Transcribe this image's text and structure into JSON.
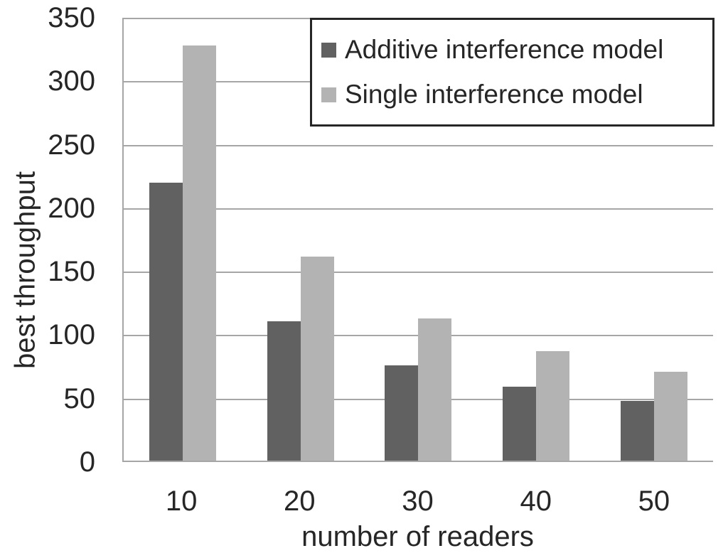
{
  "chart_data": {
    "type": "bar",
    "title": "",
    "xlabel": "number of readers",
    "ylabel": "best throughput",
    "categories": [
      "10",
      "20",
      "30",
      "40",
      "50"
    ],
    "series": [
      {
        "name": "Additive interference model",
        "color": "#616161",
        "values": [
          219,
          110,
          75,
          58,
          47
        ]
      },
      {
        "name": "Single interference model",
        "color": "#b3b3b3",
        "values": [
          327,
          161,
          112,
          86,
          70
        ]
      }
    ],
    "ylim": [
      0,
      350
    ],
    "ytick_step": 50,
    "yticks": [
      0,
      50,
      100,
      150,
      200,
      250,
      300,
      350
    ],
    "grid": true,
    "legend_position": "top-right"
  },
  "colors": {
    "background": "#ffffff",
    "grid": "#a6a6a6",
    "axis": "#a6a6a6",
    "text": "#262626",
    "legend_border": "#262626"
  }
}
